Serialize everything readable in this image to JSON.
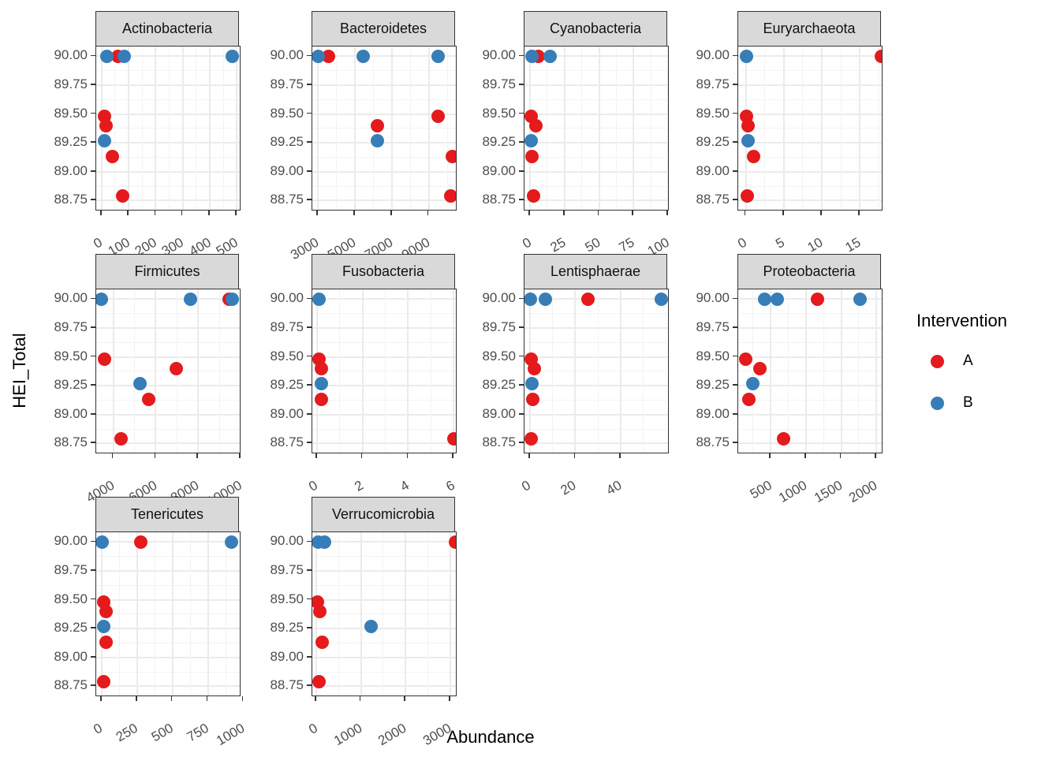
{
  "chart_data": {
    "type": "scatter",
    "xlabel": "Abundance",
    "ylabel": "HEI_Total",
    "legend": {
      "title": "Intervention",
      "position": "right",
      "entries": [
        {
          "label": "A",
          "color": "#E41A1C"
        },
        {
          "label": "B",
          "color": "#377EB8"
        }
      ]
    },
    "grid": "major+minor",
    "y_ticks": [
      "90.00",
      "89.75",
      "89.50",
      "89.25",
      "89.00",
      "88.75"
    ],
    "y_domain": [
      88.67,
      90.085
    ],
    "facets": [
      {
        "name": "Actinobacteria",
        "x_ticks": [
          0,
          100,
          200,
          300,
          400,
          500
        ],
        "x_domain": [
          -20,
          511
        ],
        "points": [
          {
            "x": 60,
            "y": 90.0,
            "g": "A"
          },
          {
            "x": 11,
            "y": 89.48,
            "g": "A"
          },
          {
            "x": 17,
            "y": 89.4,
            "g": "A"
          },
          {
            "x": 40,
            "y": 89.13,
            "g": "A"
          },
          {
            "x": 78,
            "y": 88.79,
            "g": "A"
          },
          {
            "x": 20,
            "y": 90.0,
            "g": "B"
          },
          {
            "x": 83,
            "y": 90.0,
            "g": "B"
          },
          {
            "x": 483,
            "y": 90.0,
            "g": "B"
          },
          {
            "x": 11,
            "y": 89.27,
            "g": "B"
          }
        ]
      },
      {
        "name": "Bacteroidetes",
        "x_ticks": [
          3000,
          5000,
          7000,
          9000
        ],
        "x_domain": [
          2690,
          10470
        ],
        "points": [
          {
            "x": 3570,
            "y": 90.0,
            "g": "A"
          },
          {
            "x": 9500,
            "y": 89.48,
            "g": "A"
          },
          {
            "x": 6210,
            "y": 89.4,
            "g": "A"
          },
          {
            "x": 10280,
            "y": 89.13,
            "g": "A"
          },
          {
            "x": 10210,
            "y": 88.79,
            "g": "A"
          },
          {
            "x": 3000,
            "y": 90.0,
            "g": "B"
          },
          {
            "x": 5430,
            "y": 90.0,
            "g": "B"
          },
          {
            "x": 9510,
            "y": 90.0,
            "g": "B"
          },
          {
            "x": 6210,
            "y": 89.27,
            "g": "B"
          }
        ]
      },
      {
        "name": "Cyanobacteria",
        "x_ticks": [
          0,
          25,
          50,
          75,
          100
        ],
        "x_domain": [
          -4,
          100
        ],
        "points": [
          {
            "x": 6,
            "y": 90.0,
            "g": "A"
          },
          {
            "x": 1,
            "y": 89.48,
            "g": "A"
          },
          {
            "x": 4.5,
            "y": 89.4,
            "g": "A"
          },
          {
            "x": 1.7,
            "y": 89.13,
            "g": "A"
          },
          {
            "x": 2.8,
            "y": 88.79,
            "g": "A"
          },
          {
            "x": 1.7,
            "y": 90.0,
            "g": "B"
          },
          {
            "x": 14.5,
            "y": 90.0,
            "g": "B"
          },
          {
            "x": 1,
            "y": 89.27,
            "g": "B"
          }
        ]
      },
      {
        "name": "Euryarchaeota",
        "x_ticks": [
          0,
          5,
          10,
          15
        ],
        "x_domain": [
          -1,
          17.9
        ],
        "points": [
          {
            "x": 17.8,
            "y": 90.0,
            "g": "A"
          },
          {
            "x": 0.1,
            "y": 89.48,
            "g": "A"
          },
          {
            "x": 0.3,
            "y": 89.4,
            "g": "A"
          },
          {
            "x": 1.0,
            "y": 89.13,
            "g": "A"
          },
          {
            "x": 0.2,
            "y": 88.79,
            "g": "A"
          },
          {
            "x": 0.1,
            "y": 90.0,
            "g": "B"
          },
          {
            "x": 0.3,
            "y": 89.27,
            "g": "B"
          }
        ]
      },
      {
        "name": "Firmicutes",
        "x_ticks": [
          4000,
          6000,
          8000,
          10000
        ],
        "x_domain": [
          3200,
          9960
        ],
        "points": [
          {
            "x": 9450,
            "y": 90.0,
            "g": "A"
          },
          {
            "x": 3600,
            "y": 89.48,
            "g": "A"
          },
          {
            "x": 6980,
            "y": 89.4,
            "g": "A"
          },
          {
            "x": 5670,
            "y": 89.13,
            "g": "A"
          },
          {
            "x": 4360,
            "y": 88.79,
            "g": "A"
          },
          {
            "x": 3455,
            "y": 90.0,
            "g": "B"
          },
          {
            "x": 7630,
            "y": 90.0,
            "g": "B"
          },
          {
            "x": 9620,
            "y": 90.0,
            "g": "B"
          },
          {
            "x": 5270,
            "y": 89.27,
            "g": "B"
          }
        ]
      },
      {
        "name": "Fusobacteria",
        "x_ticks": [
          0,
          2,
          4,
          6
        ],
        "x_domain": [
          -0.2,
          6.1
        ],
        "points": [
          {
            "x": 0.1,
            "y": 89.48,
            "g": "A"
          },
          {
            "x": 0.2,
            "y": 89.4,
            "g": "A"
          },
          {
            "x": 0.2,
            "y": 89.13,
            "g": "A"
          },
          {
            "x": 6.0,
            "y": 88.79,
            "g": "A"
          },
          {
            "x": 0.1,
            "y": 90.0,
            "g": "B"
          },
          {
            "x": 0.2,
            "y": 89.27,
            "g": "B"
          }
        ]
      },
      {
        "name": "Lentisphaerae",
        "x_ticks": [
          0,
          20,
          40
        ],
        "x_domain": [
          -2.4,
          61
        ],
        "points": [
          {
            "x": 25.8,
            "y": 90.0,
            "g": "A"
          },
          {
            "x": 0.7,
            "y": 89.48,
            "g": "A"
          },
          {
            "x": 2,
            "y": 89.4,
            "g": "A"
          },
          {
            "x": 1.4,
            "y": 89.13,
            "g": "A"
          },
          {
            "x": 0.7,
            "y": 88.79,
            "g": "A"
          },
          {
            "x": 0.3,
            "y": 90.0,
            "g": "B"
          },
          {
            "x": 7,
            "y": 90.0,
            "g": "B"
          },
          {
            "x": 58,
            "y": 90.0,
            "g": "B"
          },
          {
            "x": 1,
            "y": 89.27,
            "g": "B"
          }
        ]
      },
      {
        "name": "Proteobacteria",
        "x_ticks": [
          500,
          1000,
          1500,
          2000
        ],
        "x_domain": [
          40,
          2075
        ],
        "points": [
          {
            "x": 1165,
            "y": 90.0,
            "g": "A"
          },
          {
            "x": 145,
            "y": 89.48,
            "g": "A"
          },
          {
            "x": 350,
            "y": 89.4,
            "g": "A"
          },
          {
            "x": 190,
            "y": 89.13,
            "g": "A"
          },
          {
            "x": 685,
            "y": 88.79,
            "g": "A"
          },
          {
            "x": 410,
            "y": 90.0,
            "g": "B"
          },
          {
            "x": 590,
            "y": 90.0,
            "g": "B"
          },
          {
            "x": 1765,
            "y": 90.0,
            "g": "B"
          },
          {
            "x": 247,
            "y": 89.27,
            "g": "B"
          }
        ]
      },
      {
        "name": "Tenericutes",
        "x_ticks": [
          0,
          250,
          500,
          750,
          1000
        ],
        "x_domain": [
          -38,
          975
        ],
        "points": [
          {
            "x": 277,
            "y": 90.0,
            "g": "A"
          },
          {
            "x": 16,
            "y": 89.48,
            "g": "A"
          },
          {
            "x": 33,
            "y": 89.4,
            "g": "A"
          },
          {
            "x": 33,
            "y": 89.13,
            "g": "A"
          },
          {
            "x": 16,
            "y": 88.79,
            "g": "A"
          },
          {
            "x": 2,
            "y": 90.0,
            "g": "B"
          },
          {
            "x": 918,
            "y": 90.0,
            "g": "B"
          },
          {
            "x": 16,
            "y": 89.27,
            "g": "B"
          }
        ]
      },
      {
        "name": "Verrucomicrobia",
        "x_ticks": [
          0,
          1000,
          2000,
          3000
        ],
        "x_domain": [
          -91,
          3127
        ],
        "points": [
          {
            "x": 3120,
            "y": 90.0,
            "g": "A"
          },
          {
            "x": 18,
            "y": 89.48,
            "g": "A"
          },
          {
            "x": 70,
            "y": 89.4,
            "g": "A"
          },
          {
            "x": 127,
            "y": 89.13,
            "g": "A"
          },
          {
            "x": 55,
            "y": 88.79,
            "g": "A"
          },
          {
            "x": 35,
            "y": 90.0,
            "g": "B"
          },
          {
            "x": 185,
            "y": 90.0,
            "g": "B"
          },
          {
            "x": 1218,
            "y": 89.27,
            "g": "B"
          }
        ]
      }
    ],
    "colors": {
      "A": "#E41A1C",
      "B": "#377EB8",
      "strip_bg": "#D9D9D9",
      "panel_border": "#333333",
      "grid_major": "#EBEBEB",
      "grid_minor": "#F3F3F3",
      "axis_text": "#4D4D4D"
    }
  }
}
